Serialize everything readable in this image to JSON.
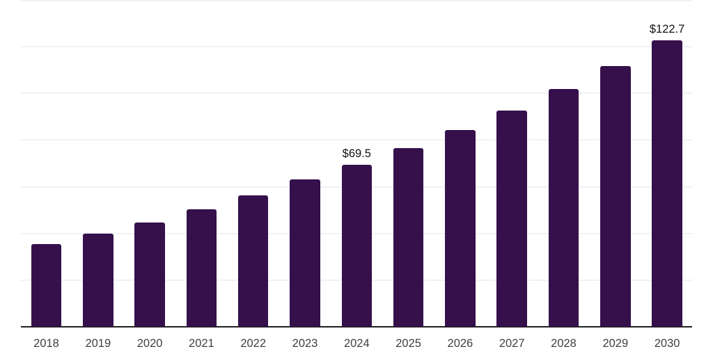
{
  "chart_data": {
    "type": "bar",
    "title": "",
    "categories": [
      "2018",
      "2019",
      "2020",
      "2021",
      "2022",
      "2023",
      "2024",
      "2025",
      "2026",
      "2027",
      "2028",
      "2029",
      "2030"
    ],
    "values": [
      35.3,
      39.8,
      44.8,
      50.4,
      56.4,
      63.2,
      69.5,
      76.6,
      84.3,
      92.6,
      101.8,
      111.6,
      122.7
    ],
    "annotations": [
      {
        "category": "2024",
        "text": "$69.5"
      },
      {
        "category": "2030",
        "text": "$122.7"
      }
    ],
    "xlabel": "",
    "ylabel": "",
    "ylim": [
      0,
      140
    ],
    "gridline_interval": 20,
    "grid": true,
    "legend": false,
    "colors": {
      "bar": "#35104b",
      "gridline": "#f1f1f3",
      "axis_line": "#1f1f1f",
      "value_label": "#111111",
      "tick_label": "#3f3f3f",
      "background": "#ffffff"
    }
  }
}
